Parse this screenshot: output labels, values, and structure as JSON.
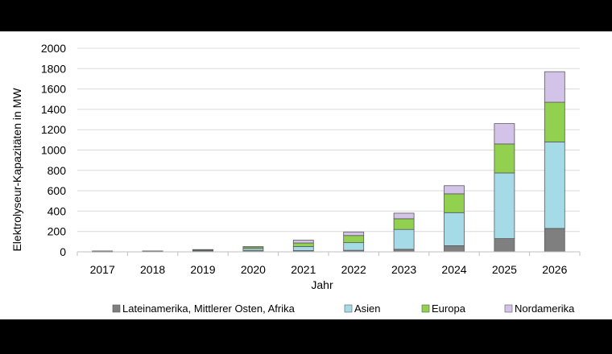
{
  "chart_data": {
    "type": "bar",
    "stacked": true,
    "title": "",
    "xlabel": "Jahr",
    "ylabel": "Elektrolyseur-Kapazitäten in MW",
    "ylim": [
      0,
      2000
    ],
    "yticks": [
      "0",
      "200",
      "400",
      "600",
      "800",
      "1000",
      "1200",
      "1400",
      "1600",
      "1800",
      "2000"
    ],
    "grid": "horizontal",
    "legend_position": "bottom",
    "categories": [
      "2017",
      "2018",
      "2019",
      "2020",
      "2021",
      "2022",
      "2023",
      "2024",
      "2025",
      "2026"
    ],
    "series": [
      {
        "name": "Lateinamerika, Mittlerer Osten, Afrika",
        "color": "#7f7f7f",
        "values": [
          2,
          3,
          10,
          12,
          12,
          15,
          25,
          60,
          130,
          230
        ]
      },
      {
        "name": "Asien",
        "color": "#a5dbe6",
        "values": [
          3,
          3,
          8,
          20,
          40,
          75,
          195,
          325,
          645,
          850
        ]
      },
      {
        "name": "Europa",
        "color": "#92d050",
        "values": [
          2,
          1,
          3,
          15,
          35,
          70,
          105,
          185,
          285,
          390
        ]
      },
      {
        "name": "Nordamerika",
        "color": "#d4c3e8",
        "values": [
          1,
          1,
          1,
          4,
          28,
          35,
          55,
          80,
          200,
          300
        ]
      }
    ]
  }
}
